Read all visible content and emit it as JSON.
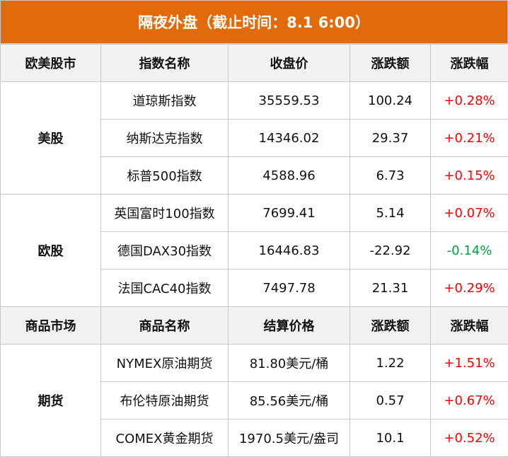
{
  "title": "隔夜外盘（截止时间：8.1 6:00）",
  "colors": {
    "header_bg": "#E16B0B",
    "up": "#ff0000",
    "down": "#00a040"
  },
  "sections": [
    {
      "headers": [
        "欧美股市",
        "指数名称",
        "收盘价",
        "涨跌额",
        "涨跌幅"
      ],
      "groups": [
        {
          "name": "美股",
          "rows": [
            {
              "name": "道琼斯指数",
              "price": "35559.53",
              "change": "100.24",
              "pct": "+0.28%",
              "dir": "up"
            },
            {
              "name": "纳斯达克指数",
              "price": "14346.02",
              "change": "29.37",
              "pct": "+0.21%",
              "dir": "up"
            },
            {
              "name": "标普500指数",
              "price": "4588.96",
              "change": "6.73",
              "pct": "+0.15%",
              "dir": "up"
            }
          ]
        },
        {
          "name": "欧股",
          "rows": [
            {
              "name": "英国富时100指数",
              "price": "7699.41",
              "change": "5.14",
              "pct": "+0.07%",
              "dir": "up"
            },
            {
              "name": "德国DAX30指数",
              "price": "16446.83",
              "change": "-22.92",
              "pct": "-0.14%",
              "dir": "down"
            },
            {
              "name": "法国CAC40指数",
              "price": "7497.78",
              "change": "21.31",
              "pct": "+0.29%",
              "dir": "up"
            }
          ]
        }
      ]
    },
    {
      "headers": [
        "商品市场",
        "商品名称",
        "结算价格",
        "涨跌额",
        "涨跌幅"
      ],
      "groups": [
        {
          "name": "期货",
          "rows": [
            {
              "name": "NYMEX原油期货",
              "price": "81.80美元/桶",
              "change": "1.22",
              "pct": "+1.51%",
              "dir": "up"
            },
            {
              "name": "布伦特原油期货",
              "price": "85.56美元/桶",
              "change": "0.57",
              "pct": "+0.67%",
              "dir": "up"
            },
            {
              "name": "COMEX黄金期货",
              "price": "1970.5美元/盎司",
              "change": "10.1",
              "pct": "+0.52%",
              "dir": "up"
            }
          ]
        }
      ]
    }
  ]
}
